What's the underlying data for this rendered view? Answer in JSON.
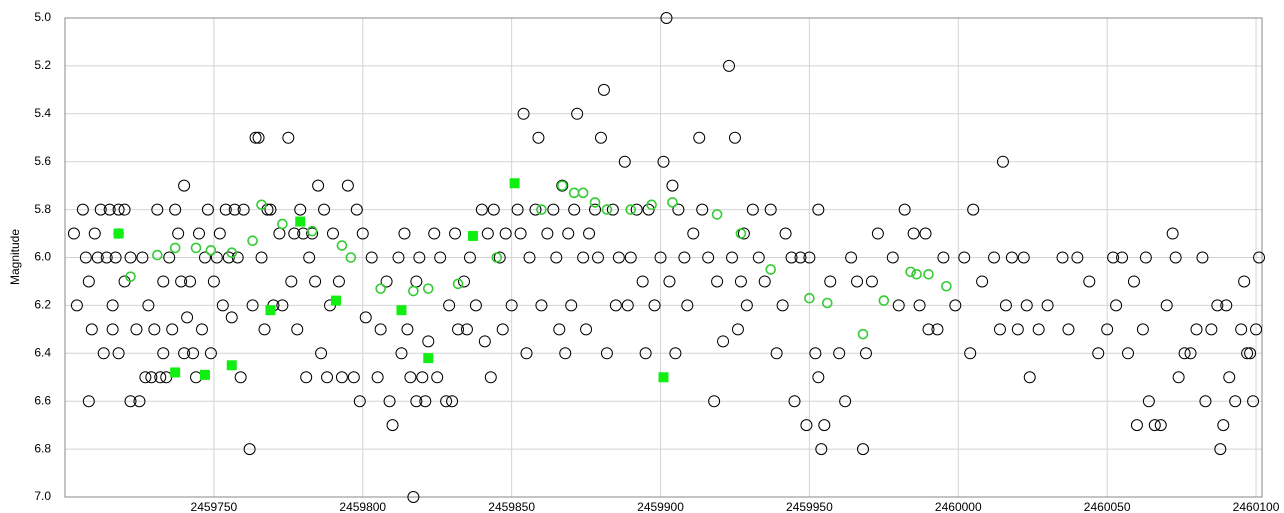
{
  "chart_data": {
    "type": "scatter",
    "y_label": "Magnitude",
    "xlim": [
      2459700,
      2460102
    ],
    "xticks": [
      2459750,
      2459800,
      2459850,
      2459900,
      2459950,
      2460000,
      2460050,
      2460100
    ],
    "ylim": [
      5,
      7
    ],
    "y_inverted": true,
    "yticks": [
      {
        "value": 5,
        "label": "5.0"
      },
      5.2,
      5.4,
      5.6,
      5.8,
      {
        "value": 6,
        "label": "6.0"
      },
      6.2,
      6.4,
      6.6,
      6.8,
      {
        "value": 7,
        "label": "7.0"
      }
    ],
    "grid": true,
    "series": [
      {
        "marker": "circle-open",
        "color": "#000000",
        "x": [
          2459703,
          2459704,
          2459706,
          2459707,
          2459708,
          2459708,
          2459709,
          2459710,
          2459711,
          2459712,
          2459713,
          2459714,
          2459715,
          2459716,
          2459716,
          2459717,
          2459718,
          2459718,
          2459720,
          2459720,
          2459722,
          2459722,
          2459724,
          2459725,
          2459726,
          2459727,
          2459728,
          2459729,
          2459730,
          2459731,
          2459732,
          2459733,
          2459733,
          2459734,
          2459735,
          2459736,
          2459737,
          2459738,
          2459739,
          2459740,
          2459740,
          2459741,
          2459742,
          2459743,
          2459744,
          2459745,
          2459746,
          2459747,
          2459748,
          2459749,
          2459750,
          2459751,
          2459752,
          2459753,
          2459754,
          2459755,
          2459756,
          2459757,
          2459758,
          2459759,
          2459760,
          2459762,
          2459763,
          2459764,
          2459765,
          2459766,
          2459767,
          2459768,
          2459769,
          2459770,
          2459772,
          2459773,
          2459775,
          2459776,
          2459777,
          2459778,
          2459779,
          2459780,
          2459781,
          2459782,
          2459783,
          2459784,
          2459785,
          2459786,
          2459787,
          2459788,
          2459789,
          2459790,
          2459792,
          2459793,
          2459795,
          2459797,
          2459798,
          2459799,
          2459800,
          2459801,
          2459803,
          2459805,
          2459806,
          2459808,
          2459809,
          2459810,
          2459812,
          2459813,
          2459814,
          2459815,
          2459816,
          2459817,
          2459818,
          2459818,
          2459819,
          2459820,
          2459821,
          2459822,
          2459824,
          2459825,
          2459826,
          2459828,
          2459829,
          2459830,
          2459831,
          2459832,
          2459834,
          2459835,
          2459836,
          2459838,
          2459840,
          2459841,
          2459842,
          2459843,
          2459844,
          2459846,
          2459847,
          2459848,
          2459850,
          2459852,
          2459853,
          2459854,
          2459855,
          2459856,
          2459858,
          2459859,
          2459860,
          2459862,
          2459864,
          2459865,
          2459866,
          2459867,
          2459868,
          2459869,
          2459870,
          2459871,
          2459872,
          2459874,
          2459875,
          2459876,
          2459878,
          2459879,
          2459880,
          2459881,
          2459882,
          2459884,
          2459885,
          2459886,
          2459888,
          2459889,
          2459890,
          2459892,
          2459894,
          2459895,
          2459896,
          2459898,
          2459900,
          2459901,
          2459902,
          2459903,
          2459904,
          2459905,
          2459906,
          2459908,
          2459909,
          2459911,
          2459913,
          2459914,
          2459916,
          2459918,
          2459919,
          2459921,
          2459923,
          2459924,
          2459925,
          2459926,
          2459927,
          2459928,
          2459929,
          2459931,
          2459933,
          2459935,
          2459937,
          2459939,
          2459941,
          2459942,
          2459944,
          2459945,
          2459947,
          2459949,
          2459950,
          2459952,
          2459953,
          2459954,
          2459955,
          2459953,
          2459957,
          2459960,
          2459962,
          2459964,
          2459966,
          2459968,
          2459969,
          2459971,
          2459973,
          2459978,
          2459980,
          2459982,
          2459985,
          2459987,
          2459989,
          2459990,
          2459993,
          2459995,
          2459999,
          2460002,
          2460004,
          2460005,
          2460008,
          2460012,
          2460014,
          2460015,
          2460016,
          2460018,
          2460020,
          2460022,
          2460023,
          2460024,
          2460027,
          2460030,
          2460035,
          2460037,
          2460040,
          2460044,
          2460047,
          2460050,
          2460052,
          2460053,
          2460055,
          2460057,
          2460059,
          2460060,
          2460062,
          2460063,
          2460064,
          2460066,
          2460068,
          2460070,
          2460072,
          2460073,
          2460074,
          2460076,
          2460078,
          2460080,
          2460082,
          2460083,
          2460085,
          2460087,
          2460088,
          2460089,
          2460090,
          2460091,
          2460093,
          2460095,
          2460096,
          2460097,
          2460098,
          2460099,
          2460100,
          2460101
        ],
        "values": [
          5.9,
          6.2,
          5.8,
          6.0,
          6.6,
          6.1,
          6.3,
          5.9,
          6.0,
          5.8,
          6.4,
          6.0,
          5.8,
          6.2,
          6.3,
          6.0,
          6.4,
          5.8,
          6.1,
          5.8,
          6.0,
          6.6,
          6.3,
          6.6,
          6.0,
          6.5,
          6.2,
          6.5,
          6.3,
          5.8,
          6.5,
          6.4,
          6.1,
          6.5,
          6.0,
          6.3,
          5.8,
          5.9,
          6.1,
          5.7,
          6.4,
          6.25,
          6.1,
          6.4,
          6.5,
          5.9,
          6.3,
          6.0,
          5.8,
          6.4,
          6.1,
          6.0,
          5.9,
          6.2,
          5.8,
          6.0,
          6.25,
          5.8,
          6.0,
          6.5,
          5.8,
          6.8,
          6.2,
          5.5,
          5.5,
          6.0,
          6.3,
          5.8,
          5.8,
          6.2,
          5.9,
          6.2,
          5.5,
          6.1,
          5.9,
          6.3,
          5.8,
          5.9,
          6.5,
          6.0,
          5.9,
          6.1,
          5.7,
          6.4,
          5.8,
          6.5,
          6.2,
          5.9,
          6.1,
          6.5,
          5.7,
          6.5,
          5.8,
          6.6,
          5.9,
          6.25,
          6.0,
          6.5,
          6.3,
          6.1,
          6.6,
          6.7,
          6.0,
          6.4,
          5.9,
          6.3,
          6.5,
          7.0,
          6.1,
          6.6,
          6.0,
          6.5,
          6.6,
          6.35,
          5.9,
          6.5,
          6.0,
          6.6,
          6.2,
          6.6,
          5.9,
          6.3,
          6.1,
          6.3,
          6.0,
          6.2,
          5.8,
          6.35,
          5.9,
          6.5,
          5.8,
          6.0,
          6.3,
          5.9,
          6.2,
          5.8,
          5.9,
          5.4,
          6.4,
          6.0,
          5.8,
          5.5,
          6.2,
          5.9,
          5.8,
          6.0,
          6.3,
          5.7,
          6.4,
          5.9,
          6.2,
          5.8,
          5.4,
          6.0,
          6.3,
          5.9,
          5.8,
          6.0,
          5.5,
          5.3,
          6.4,
          5.8,
          6.2,
          6.0,
          5.6,
          6.2,
          6.0,
          5.8,
          6.1,
          6.4,
          5.8,
          6.2,
          6.0,
          5.6,
          5.0,
          6.1,
          5.7,
          6.4,
          5.8,
          6.0,
          6.2,
          5.9,
          5.5,
          5.8,
          6.0,
          6.6,
          6.1,
          6.35,
          5.2,
          6.0,
          5.5,
          6.3,
          6.1,
          5.9,
          6.2,
          5.8,
          6.0,
          6.1,
          5.8,
          6.4,
          6.2,
          5.9,
          6.0,
          6.6,
          6.0,
          6.7,
          6.0,
          6.4,
          6.5,
          6.8,
          6.7,
          5.8,
          6.1,
          6.4,
          6.6,
          6.0,
          6.1,
          6.8,
          6.4,
          6.1,
          5.9,
          6.0,
          6.2,
          5.8,
          5.9,
          6.2,
          5.9,
          6.3,
          6.3,
          6.0,
          6.2,
          6.0,
          6.4,
          5.8,
          6.1,
          6.0,
          6.3,
          5.6,
          6.2,
          6.0,
          6.3,
          6.0,
          6.2,
          6.5,
          6.3,
          6.2,
          6.0,
          6.3,
          6.0,
          6.1,
          6.4,
          6.3,
          6.0,
          6.2,
          6.0,
          6.4,
          6.1,
          6.7,
          6.3,
          6.0,
          6.6,
          6.7,
          6.7,
          6.2,
          5.9,
          6.0,
          6.5,
          6.4,
          6.4,
          6.3,
          6.0,
          6.6,
          6.3,
          6.2,
          6.8,
          6.7,
          6.2,
          6.5,
          6.6,
          6.3,
          6.1,
          6.4,
          6.4,
          6.6,
          6.3,
          6.0
        ]
      },
      {
        "marker": "circle-open",
        "color": "#33cc33",
        "x": [
          2459718,
          2459722,
          2459731,
          2459737,
          2459744,
          2459749,
          2459756,
          2459763,
          2459766,
          2459773,
          2459783,
          2459793,
          2459796,
          2459806,
          2459817,
          2459822,
          2459832,
          2459845,
          2459860,
          2459867,
          2459871,
          2459874,
          2459878,
          2459882,
          2459890,
          2459897,
          2459904,
          2459919,
          2459927,
          2459937,
          2459950,
          2459956,
          2459968,
          2459975,
          2459984,
          2459986,
          2459990,
          2459996
        ],
        "values": [
          5.9,
          6.08,
          5.99,
          5.96,
          5.96,
          5.97,
          5.98,
          5.93,
          5.78,
          5.86,
          5.89,
          5.95,
          6.0,
          6.13,
          6.14,
          6.13,
          6.11,
          6.0,
          5.8,
          5.7,
          5.73,
          5.73,
          5.77,
          5.8,
          5.8,
          5.78,
          5.77,
          5.82,
          5.9,
          6.05,
          6.17,
          6.19,
          6.32,
          6.18,
          6.06,
          6.07,
          6.07,
          6.12
        ]
      },
      {
        "marker": "square",
        "color": "#11ee11",
        "x": [
          2459718,
          2459737,
          2459747,
          2459756,
          2459769,
          2459779,
          2459791,
          2459813,
          2459822,
          2459837,
          2459851,
          2459901
        ],
        "values": [
          5.9,
          6.48,
          6.49,
          6.45,
          6.22,
          5.85,
          6.18,
          6.22,
          6.42,
          5.91,
          5.69,
          6.5
        ]
      }
    ]
  }
}
